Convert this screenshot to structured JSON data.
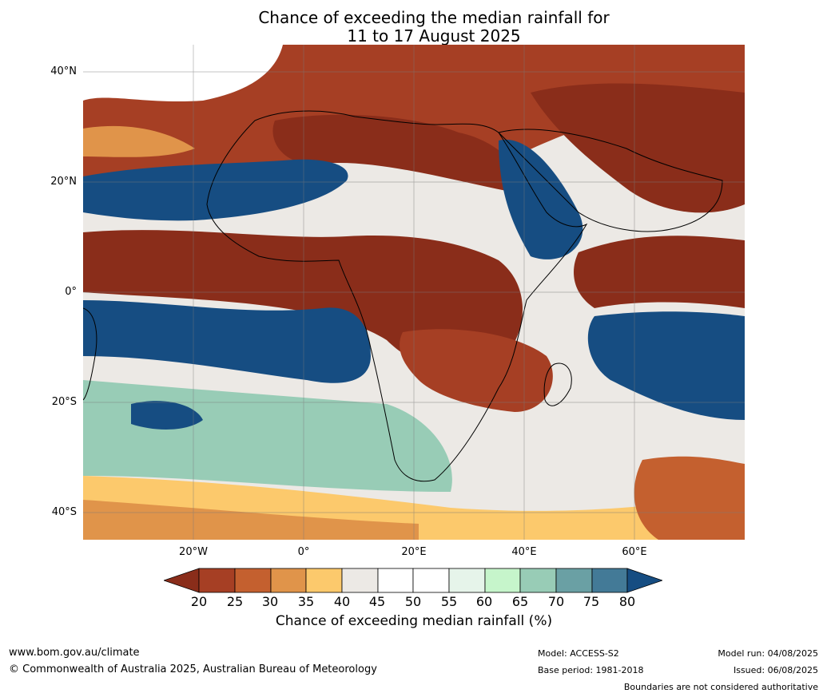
{
  "title": {
    "line1": "Chance of exceeding the median rainfall for",
    "line2": "11 to 17 August 2025"
  },
  "map": {
    "lat_labels": [
      "40°N",
      "20°N",
      "0°",
      "20°S",
      "40°S"
    ],
    "lon_labels": [
      "20°W",
      "0°",
      "20°E",
      "40°E",
      "60°E"
    ]
  },
  "colorbar": {
    "ticks": [
      "20",
      "25",
      "30",
      "35",
      "40",
      "45",
      "50",
      "55",
      "60",
      "65",
      "70",
      "75",
      "80"
    ],
    "colors": [
      "#8a2d1a",
      "#a63f24",
      "#c4602f",
      "#e0944a",
      "#fcc96c",
      "#ece9e5",
      "#ffffff",
      "#ffffff",
      "#e6f4ea",
      "#c6f5cb",
      "#98ccb6",
      "#6aa0a4",
      "#437a97",
      "#164d82"
    ],
    "title": "Chance of exceeding median rainfall (%)"
  },
  "footer": {
    "url": "www.bom.gov.au/climate",
    "copyright": "© Commonwealth of Australia 2025, Australian Bureau of Meteorology",
    "model": "Model: ACCESS-S2",
    "base_period": "Base period: 1981-2018",
    "model_run": "Model run: 04/08/2025",
    "issued": "Issued: 06/08/2025",
    "disclaimer": "Boundaries are not considered authoritative"
  }
}
